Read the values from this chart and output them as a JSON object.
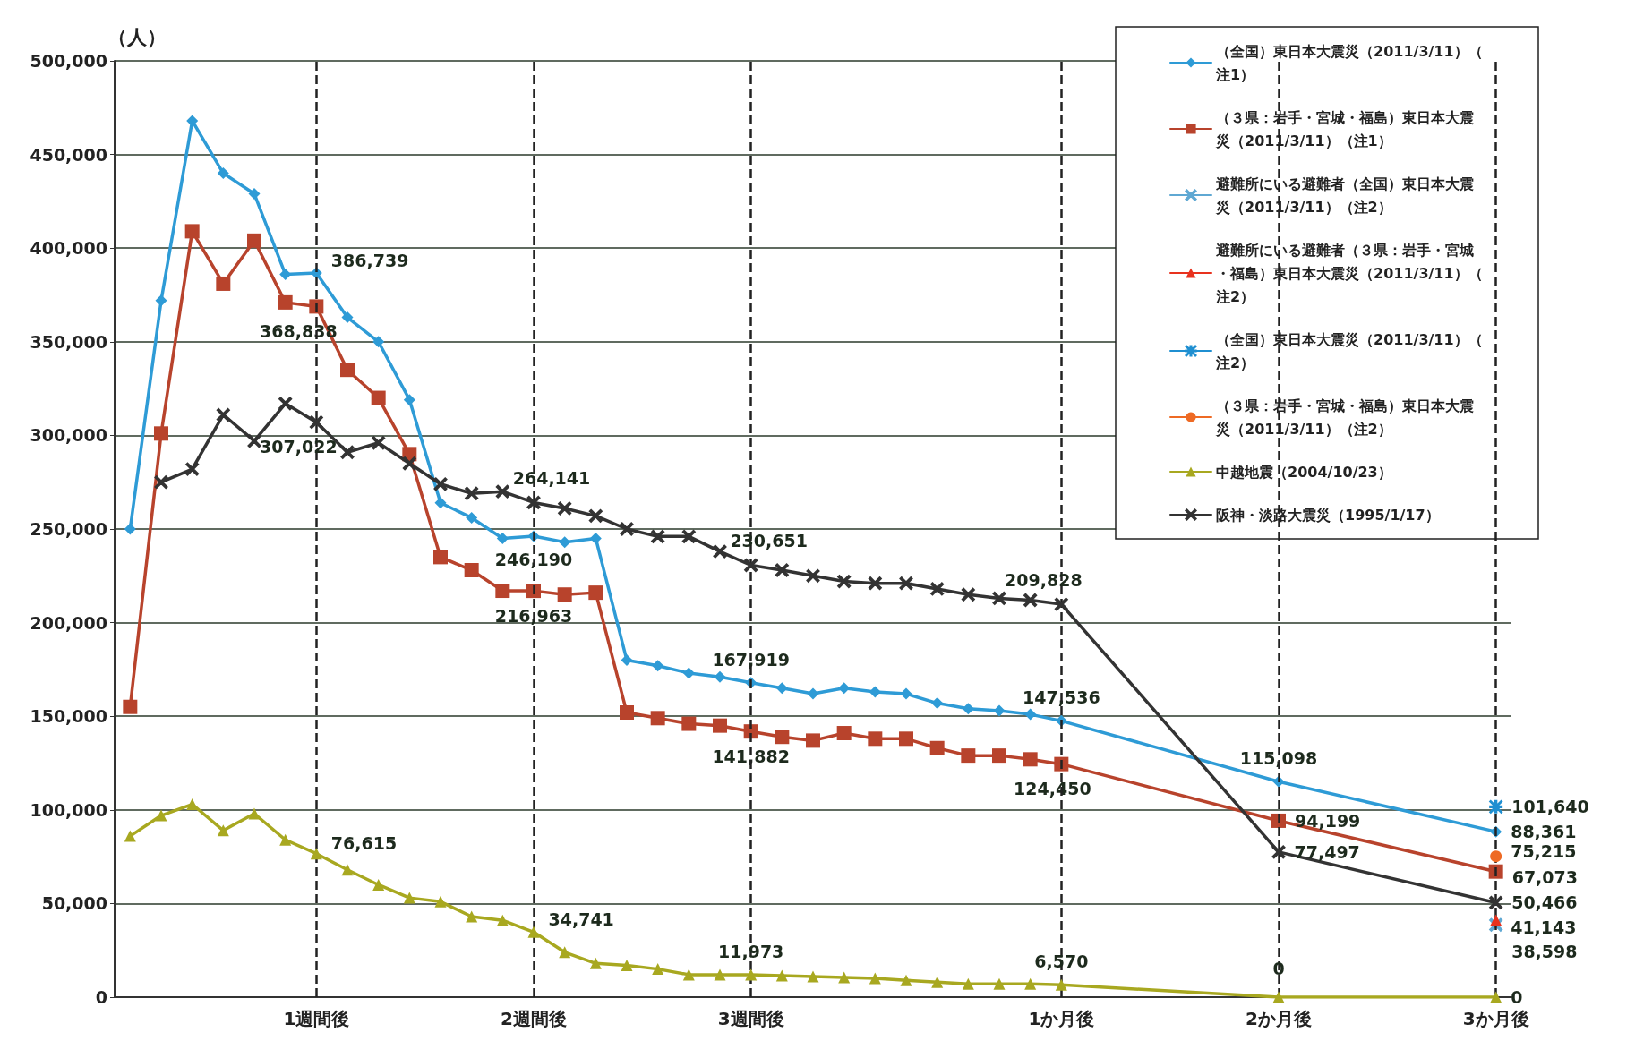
{
  "chart_data": {
    "type": "line",
    "ylabel": "（人）",
    "categories": [
      null,
      null,
      null,
      null,
      null,
      null,
      "1週間後",
      null,
      null,
      null,
      null,
      null,
      null,
      "2週間後",
      null,
      null,
      null,
      null,
      null,
      null,
      "3週間後",
      null,
      null,
      null,
      null,
      null,
      null,
      null,
      null,
      null,
      "1か月後",
      null,
      null,
      null,
      null,
      null,
      null,
      "2か月後",
      null,
      null,
      null,
      null,
      null,
      null,
      "3か月後"
    ],
    "ylim": [
      0,
      500000
    ],
    "yticks": [
      {
        "value": 0,
        "label": "0"
      },
      {
        "value": 50000,
        "label": "50,000"
      },
      {
        "value": 100000,
        "label": "100,000"
      },
      {
        "value": 150000,
        "label": "150,000"
      },
      {
        "value": 200000,
        "label": "200,000"
      },
      {
        "value": 250000,
        "label": "250,000"
      },
      {
        "value": 300000,
        "label": "300,000"
      },
      {
        "value": 350000,
        "label": "350,000"
      },
      {
        "value": 400000,
        "label": "400,000"
      },
      {
        "value": 450000,
        "label": "450,000"
      },
      {
        "value": 500000,
        "label": "500,000"
      }
    ],
    "grid": "y",
    "legend": "top right",
    "line_style": "solid",
    "ref_lines": [
      {
        "axis": "x",
        "value": "1週間後",
        "label": null,
        "color": "#222222",
        "line_style": "dashed"
      },
      {
        "axis": "x",
        "value": "2週間後",
        "label": null,
        "color": "#222222",
        "line_style": "dashed"
      },
      {
        "axis": "x",
        "value": "3週間後",
        "label": null,
        "color": "#222222",
        "line_style": "dashed"
      },
      {
        "axis": "x",
        "value": "1か月後",
        "label": null,
        "color": "#222222",
        "line_style": "dashed"
      },
      {
        "axis": "x",
        "value": "2か月後",
        "label": null,
        "color": "#222222",
        "line_style": "dashed"
      },
      {
        "axis": "x",
        "value": "3か月後",
        "label": null,
        "color": "#222222",
        "line_style": "dashed"
      }
    ],
    "series": [
      {
        "name": "（全国）東日本大震災（2011/3/11）（注1）",
        "color": "#2e9bd6",
        "marker": "diamond",
        "values": [
          250000,
          372000,
          468000,
          440000,
          429000,
          386000,
          386739,
          363000,
          350000,
          319000,
          264000,
          256000,
          245000,
          246190,
          243000,
          245000,
          180000,
          177000,
          173000,
          171000,
          167919,
          165000,
          162000,
          165000,
          163000,
          162000,
          157000,
          154000,
          153000,
          151000,
          147536,
          null,
          null,
          null,
          null,
          null,
          null,
          115098,
          null,
          null,
          null,
          null,
          null,
          null,
          88361
        ],
        "value_labels": [
          null,
          null,
          null,
          null,
          null,
          null,
          "386,739",
          null,
          null,
          null,
          null,
          null,
          null,
          "246,190",
          null,
          null,
          null,
          null,
          null,
          null,
          "167,919",
          null,
          null,
          null,
          null,
          null,
          null,
          null,
          null,
          null,
          "147,536",
          null,
          null,
          null,
          null,
          null,
          null,
          "115,098",
          null,
          null,
          null,
          null,
          null,
          null,
          "88,361"
        ]
      },
      {
        "name": "（３県：岩手・宮城・福島）東日本大震災（2011/3/11）（注1）",
        "color": "#b8432c",
        "marker": "square",
        "values": [
          155000,
          301000,
          409000,
          381000,
          404000,
          371000,
          368838,
          335000,
          320000,
          290000,
          235000,
          228000,
          217000,
          216963,
          215000,
          216000,
          152000,
          149000,
          146000,
          145000,
          141882,
          139000,
          137000,
          141000,
          138000,
          138000,
          133000,
          129000,
          129000,
          127000,
          124450,
          null,
          null,
          null,
          null,
          null,
          null,
          94199,
          null,
          null,
          null,
          null,
          null,
          null,
          67073
        ],
        "value_labels": [
          null,
          null,
          null,
          null,
          null,
          null,
          "368,838",
          null,
          null,
          null,
          null,
          null,
          null,
          "216,963",
          null,
          null,
          null,
          null,
          null,
          null,
          "141,882",
          null,
          null,
          null,
          null,
          null,
          null,
          null,
          null,
          null,
          "124,450",
          null,
          null,
          null,
          null,
          null,
          null,
          "94,199",
          null,
          null,
          null,
          null,
          null,
          null,
          "67,073"
        ]
      },
      {
        "name": "避難所にいる避難者（全国）東日本大震災（2011/3/11）（注2）",
        "color": "#5fa8d3",
        "marker": "cross",
        "values": [
          null,
          null,
          null,
          null,
          null,
          null,
          null,
          null,
          null,
          null,
          null,
          null,
          null,
          null,
          null,
          null,
          null,
          null,
          null,
          null,
          null,
          null,
          null,
          null,
          null,
          null,
          null,
          null,
          null,
          null,
          null,
          null,
          null,
          null,
          null,
          null,
          null,
          null,
          null,
          null,
          null,
          null,
          null,
          null,
          38598
        ],
        "value_labels": [
          null,
          null,
          null,
          null,
          null,
          null,
          null,
          null,
          null,
          null,
          null,
          null,
          null,
          null,
          null,
          null,
          null,
          null,
          null,
          null,
          null,
          null,
          null,
          null,
          null,
          null,
          null,
          null,
          null,
          null,
          null,
          null,
          null,
          null,
          null,
          null,
          null,
          null,
          null,
          null,
          null,
          null,
          null,
          null,
          "38,598"
        ]
      },
      {
        "name": "避難所にいる避難者（３県：岩手・宮城・福島）東日本大震災（2011/3/11）（注2）",
        "color": "#e8321e",
        "marker": "triangle",
        "values": [
          null,
          null,
          null,
          null,
          null,
          null,
          null,
          null,
          null,
          null,
          null,
          null,
          null,
          null,
          null,
          null,
          null,
          null,
          null,
          null,
          null,
          null,
          null,
          null,
          null,
          null,
          null,
          null,
          null,
          null,
          null,
          null,
          null,
          null,
          null,
          null,
          null,
          null,
          null,
          null,
          null,
          null,
          null,
          null,
          41143
        ],
        "value_labels": [
          null,
          null,
          null,
          null,
          null,
          null,
          null,
          null,
          null,
          null,
          null,
          null,
          null,
          null,
          null,
          null,
          null,
          null,
          null,
          null,
          null,
          null,
          null,
          null,
          null,
          null,
          null,
          null,
          null,
          null,
          null,
          null,
          null,
          null,
          null,
          null,
          null,
          null,
          null,
          null,
          null,
          null,
          null,
          null,
          "41,143"
        ]
      },
      {
        "name": "（全国）東日本大震災（2011/3/11）（注2）",
        "color": "#1f8fd1",
        "marker": "star",
        "values": [
          null,
          null,
          null,
          null,
          null,
          null,
          null,
          null,
          null,
          null,
          null,
          null,
          null,
          null,
          null,
          null,
          null,
          null,
          null,
          null,
          null,
          null,
          null,
          null,
          null,
          null,
          null,
          null,
          null,
          null,
          null,
          null,
          null,
          null,
          null,
          null,
          null,
          null,
          null,
          null,
          null,
          null,
          null,
          null,
          101640
        ],
        "value_labels": [
          null,
          null,
          null,
          null,
          null,
          null,
          null,
          null,
          null,
          null,
          null,
          null,
          null,
          null,
          null,
          null,
          null,
          null,
          null,
          null,
          null,
          null,
          null,
          null,
          null,
          null,
          null,
          null,
          null,
          null,
          null,
          null,
          null,
          null,
          null,
          null,
          null,
          null,
          null,
          null,
          null,
          null,
          null,
          null,
          "101,640"
        ]
      },
      {
        "name": "（３県：岩手・宮城・福島）東日本大震災（2011/3/11）（注2）",
        "color": "#ee6a24",
        "marker": "circle",
        "values": [
          null,
          null,
          null,
          null,
          null,
          null,
          null,
          null,
          null,
          null,
          null,
          null,
          null,
          null,
          null,
          null,
          null,
          null,
          null,
          null,
          null,
          null,
          null,
          null,
          null,
          null,
          null,
          null,
          null,
          null,
          null,
          null,
          null,
          null,
          null,
          null,
          null,
          null,
          null,
          null,
          null,
          null,
          null,
          null,
          75215
        ],
        "value_labels": [
          null,
          null,
          null,
          null,
          null,
          null,
          null,
          null,
          null,
          null,
          null,
          null,
          null,
          null,
          null,
          null,
          null,
          null,
          null,
          null,
          null,
          null,
          null,
          null,
          null,
          null,
          null,
          null,
          null,
          null,
          null,
          null,
          null,
          null,
          null,
          null,
          null,
          null,
          null,
          null,
          null,
          null,
          null,
          null,
          "75,215"
        ]
      },
      {
        "name": "中越地震（2004/10/23）",
        "color": "#a8a820",
        "marker": "triangle",
        "values": [
          86000,
          97000,
          103000,
          89000,
          98000,
          84000,
          76615,
          68000,
          60000,
          53000,
          51000,
          43000,
          41000,
          34741,
          24000,
          18000,
          17000,
          15000,
          12000,
          12000,
          11973,
          11500,
          11000,
          10500,
          10000,
          9000,
          8000,
          7000,
          7000,
          7000,
          6570,
          null,
          null,
          null,
          null,
          null,
          null,
          0,
          null,
          null,
          null,
          null,
          null,
          null,
          0
        ],
        "value_labels": [
          null,
          null,
          null,
          null,
          null,
          null,
          "76,615",
          null,
          null,
          null,
          null,
          null,
          null,
          "34,741",
          null,
          null,
          null,
          null,
          null,
          null,
          "11,973",
          null,
          null,
          null,
          null,
          null,
          null,
          null,
          null,
          null,
          "6,570",
          null,
          null,
          null,
          null,
          null,
          null,
          "0",
          null,
          null,
          null,
          null,
          null,
          null,
          "0"
        ]
      },
      {
        "name": "阪神・淡路大震災（1995/1/17）",
        "color": "#333333",
        "marker": "cross",
        "values": [
          null,
          275000,
          282000,
          311000,
          297000,
          317000,
          307022,
          291000,
          296000,
          285000,
          274000,
          269000,
          270000,
          264141,
          261000,
          257000,
          250000,
          246000,
          246000,
          238000,
          230651,
          228000,
          225000,
          222000,
          221000,
          221000,
          218000,
          215000,
          213000,
          212000,
          209828,
          null,
          null,
          null,
          null,
          null,
          null,
          77497,
          null,
          null,
          null,
          null,
          null,
          null,
          50466
        ],
        "value_labels": [
          null,
          null,
          null,
          null,
          null,
          null,
          "307,022",
          null,
          null,
          null,
          null,
          null,
          null,
          "264,141",
          null,
          null,
          null,
          null,
          null,
          null,
          "230,651",
          null,
          null,
          null,
          null,
          null,
          null,
          null,
          null,
          null,
          "209,828",
          null,
          null,
          null,
          null,
          null,
          null,
          "77,497",
          null,
          null,
          null,
          null,
          null,
          null,
          "50,466"
        ]
      }
    ]
  }
}
